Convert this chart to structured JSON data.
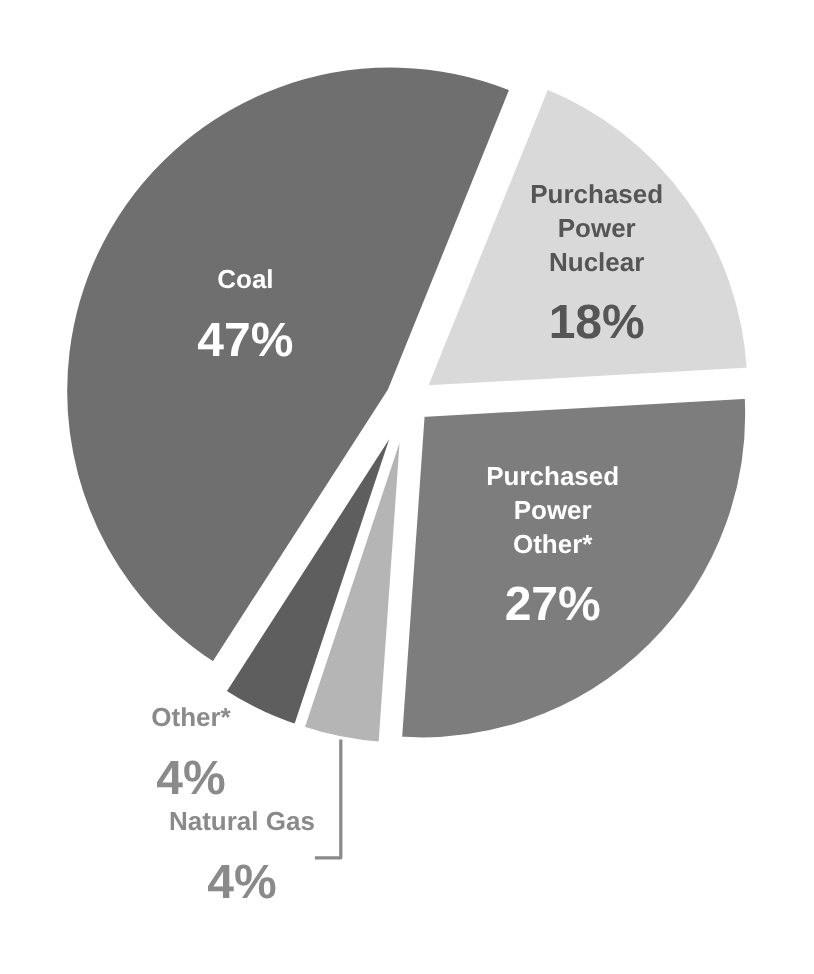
{
  "chart_data": {
    "type": "pie",
    "categories": [
      "Purchased\nPower\nNuclear",
      "Purchased\nPower\nOther*",
      "Natural Gas",
      "Other*",
      "Coal"
    ],
    "values": [
      18,
      27,
      4,
      4,
      47
    ],
    "value_labels": [
      "18%",
      "27%",
      "4%",
      "4%",
      "47%"
    ],
    "colors": [
      "#d9d9d9",
      "#7d7d7d",
      "#b5b5b5",
      "#5e5e5e",
      "#6f6f6f"
    ],
    "legend": false
  }
}
